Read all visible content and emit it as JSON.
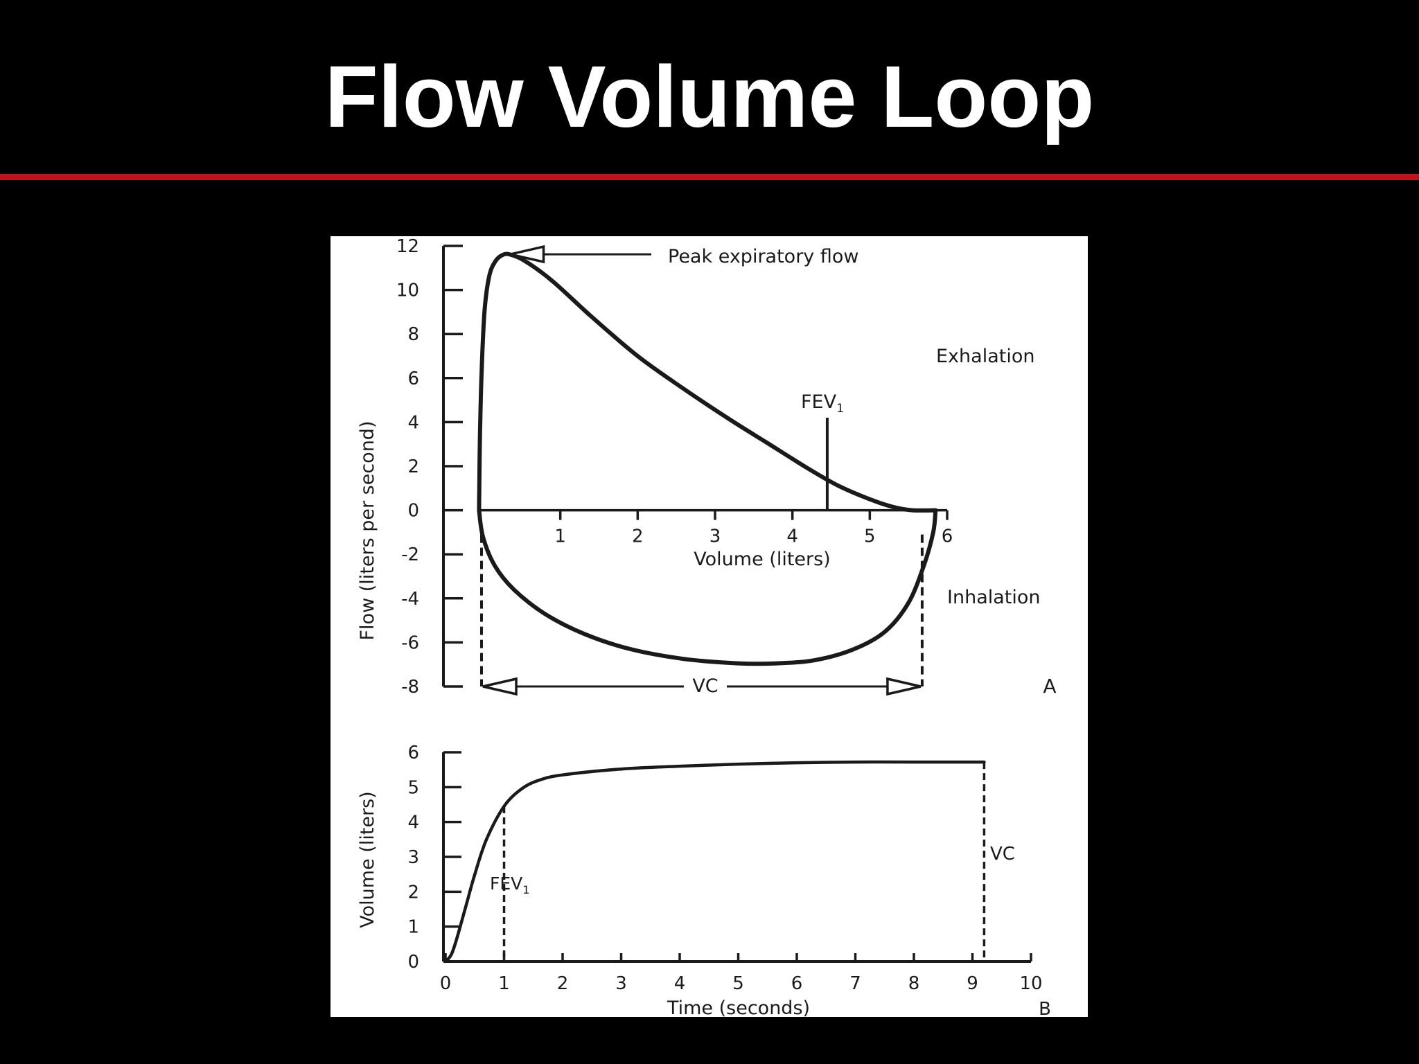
{
  "slide": {
    "title": "Flow Volume Loop",
    "accent_color": "#c0121a",
    "background_color": "#000000"
  },
  "chart_data": [
    {
      "type": "line",
      "panel_label": "A",
      "xlabel": "Volume (liters)",
      "ylabel": "Flow (liters per second)",
      "xlim": [
        0,
        6
      ],
      "ylim": [
        -8,
        12
      ],
      "x_ticks": [
        "1",
        "2",
        "3",
        "4",
        "5",
        "6"
      ],
      "y_ticks": [
        "12",
        "10",
        "8",
        "6",
        "4",
        "2",
        "0",
        "-2",
        "-4",
        "-6",
        "-8"
      ],
      "grid": false,
      "series": [
        {
          "role": "expiration",
          "points": [
            [
              -0.05,
              0
            ],
            [
              -0.04,
              3
            ],
            [
              -0.02,
              6
            ],
            [
              0.02,
              9
            ],
            [
              0.08,
              10.6
            ],
            [
              0.16,
              11.3
            ],
            [
              0.26,
              11.6
            ],
            [
              0.36,
              11.6
            ],
            [
              0.55,
              11.3
            ],
            [
              0.9,
              10.4
            ],
            [
              1.4,
              8.8
            ],
            [
              2,
              7
            ],
            [
              2.6,
              5.5
            ],
            [
              3.2,
              4.1
            ],
            [
              3.7,
              3
            ],
            [
              4.2,
              1.9
            ],
            [
              4.6,
              1.1
            ],
            [
              5,
              0.5
            ],
            [
              5.3,
              0.15
            ],
            [
              5.55,
              0
            ],
            [
              5.85,
              0
            ]
          ]
        },
        {
          "role": "inspiration",
          "points": [
            [
              -0.05,
              0
            ],
            [
              0,
              -1.2
            ],
            [
              0.15,
              -2.5
            ],
            [
              0.4,
              -3.6
            ],
            [
              0.8,
              -4.7
            ],
            [
              1.3,
              -5.6
            ],
            [
              1.9,
              -6.3
            ],
            [
              2.6,
              -6.75
            ],
            [
              3.3,
              -6.95
            ],
            [
              3.8,
              -6.95
            ],
            [
              4.3,
              -6.8
            ],
            [
              4.8,
              -6.3
            ],
            [
              5.2,
              -5.5
            ],
            [
              5.5,
              -4.2
            ],
            [
              5.7,
              -2.5
            ],
            [
              5.82,
              -1
            ],
            [
              5.85,
              0
            ]
          ]
        }
      ],
      "markers": {
        "fev1_volume": 4.45,
        "vc_start_volume": 0.0,
        "vc_end_volume": 5.65
      },
      "annotations": {
        "peak_flow": "Peak expiratory flow",
        "exhalation": "Exhalation",
        "inhalation": "Inhalation",
        "fev1": "FEV",
        "fev1_sub": "1",
        "vc": "VC"
      }
    },
    {
      "type": "line",
      "panel_label": "B",
      "xlabel": "Time (seconds)",
      "ylabel": "Volume (liters)",
      "xlim": [
        0,
        10
      ],
      "ylim": [
        0,
        6
      ],
      "x_ticks": [
        "0",
        "1",
        "2",
        "3",
        "4",
        "5",
        "6",
        "7",
        "8",
        "9",
        "10"
      ],
      "y_ticks": [
        "6",
        "5",
        "4",
        "3",
        "2",
        "1",
        "0"
      ],
      "grid": false,
      "series": [
        {
          "role": "volume-time",
          "points": [
            [
              0,
              0
            ],
            [
              0.1,
              0.2
            ],
            [
              0.2,
              0.7
            ],
            [
              0.35,
              1.6
            ],
            [
              0.5,
              2.5
            ],
            [
              0.7,
              3.5
            ],
            [
              1,
              4.45
            ],
            [
              1.3,
              4.95
            ],
            [
              1.6,
              5.2
            ],
            [
              2,
              5.35
            ],
            [
              3,
              5.52
            ],
            [
              4,
              5.6
            ],
            [
              5,
              5.66
            ],
            [
              6,
              5.7
            ],
            [
              7,
              5.72
            ],
            [
              8,
              5.72
            ],
            [
              9.2,
              5.72
            ]
          ]
        }
      ],
      "markers": {
        "fev1_time": 1.0,
        "vc_time": 9.2
      },
      "annotations": {
        "fev1": "FEV",
        "fev1_sub": "1",
        "vc": "VC"
      }
    }
  ]
}
